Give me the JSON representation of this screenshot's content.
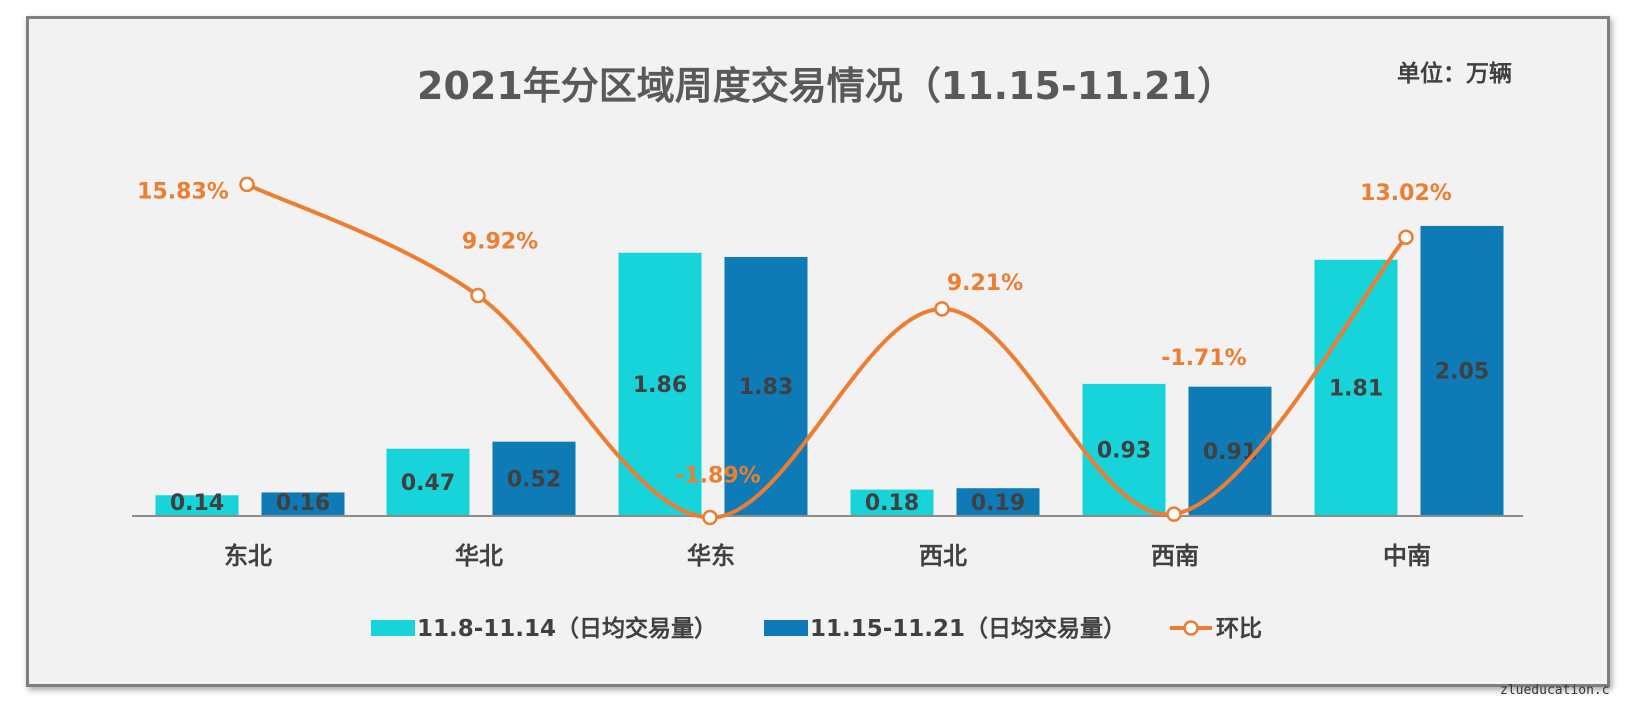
{
  "chart_data": {
    "type": "bar",
    "title": "2021年分区域周度交易情况（11.15-11.21）",
    "unit_label": "单位：万辆",
    "categories": [
      "东北",
      "华北",
      "华东",
      "西北",
      "西南",
      "中南"
    ],
    "series": [
      {
        "name": "11.8-11.14（日均交易量）",
        "type": "bar",
        "color": "#17d3da",
        "values": [
          0.14,
          0.47,
          1.86,
          0.18,
          0.93,
          1.81
        ],
        "labels": [
          "0.14",
          "0.47",
          "1.86",
          "0.18",
          "0.93",
          "1.81"
        ]
      },
      {
        "name": "11.15-11.21（日均交易量）",
        "type": "bar",
        "color": "#0e7ab6",
        "values": [
          0.16,
          0.52,
          1.83,
          0.19,
          0.91,
          2.05
        ],
        "labels": [
          "0.16",
          "0.52",
          "1.83",
          "0.19",
          "0.91",
          "2.05"
        ]
      },
      {
        "name": "环比",
        "type": "line",
        "color": "#ed7d31",
        "values": [
          15.83,
          9.92,
          -1.89,
          9.21,
          -1.71,
          13.02
        ],
        "labels": [
          "15.83%",
          "9.92%",
          "-1.89%",
          "9.21%",
          "-1.71%",
          "13.02%"
        ]
      }
    ],
    "legend_position": "bottom",
    "grid": false
  },
  "watermark": "zlueducation.c"
}
